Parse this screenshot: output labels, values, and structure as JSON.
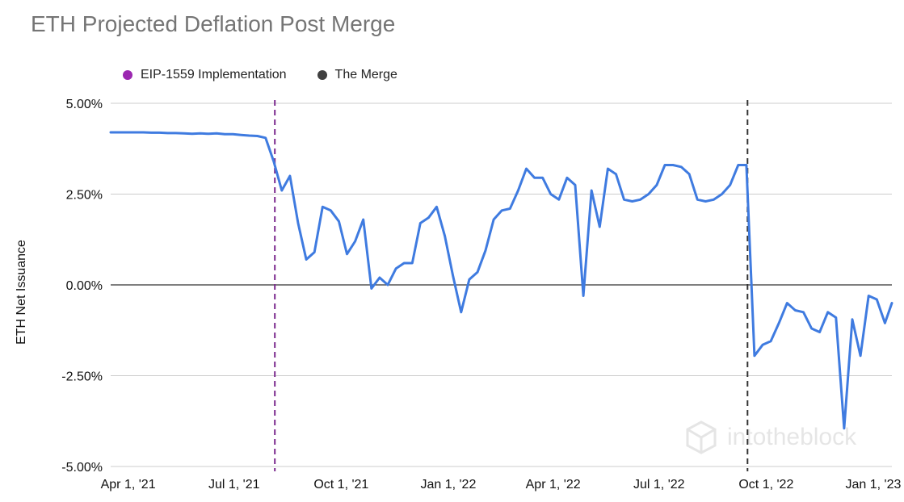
{
  "chart_data": {
    "type": "line",
    "title": "ETH Projected Deflation Post Merge",
    "ylabel": "ETH Net Issuance",
    "xlabel": "",
    "ylim": [
      -5,
      5
    ],
    "xlim": [
      "2021-03-17",
      "2023-01-17"
    ],
    "yticks": [
      {
        "value": 5,
        "label": "5.00%"
      },
      {
        "value": 2.5,
        "label": "2.50%"
      },
      {
        "value": 0,
        "label": "0.00%"
      },
      {
        "value": -2.5,
        "label": "-2.50%"
      },
      {
        "value": -5,
        "label": "-5.00%"
      }
    ],
    "xticks": [
      {
        "date": "2021-04-01",
        "label": "Apr 1, '21"
      },
      {
        "date": "2021-07-01",
        "label": "Jul 1, '21"
      },
      {
        "date": "2021-10-01",
        "label": "Oct 1, '21"
      },
      {
        "date": "2022-01-01",
        "label": "Jan 1, '22"
      },
      {
        "date": "2022-04-01",
        "label": "Apr 1, '22"
      },
      {
        "date": "2022-07-01",
        "label": "Jul 1, '22"
      },
      {
        "date": "2022-10-01",
        "label": "Oct 1, '22"
      },
      {
        "date": "2023-01-01",
        "label": "Jan 1, '23"
      }
    ],
    "grid": true,
    "legend_position": "top",
    "events": [
      {
        "name": "EIP-1559 Implementation",
        "date": "2021-08-05",
        "color": "#7b2a8e",
        "dot_color": "#9b27b0"
      },
      {
        "name": "The Merge",
        "date": "2022-09-15",
        "color": "#333333",
        "dot_color": "#404040"
      }
    ],
    "series": [
      {
        "color": "#3f7be0",
        "x": [
          "2021-03-17",
          "2021-03-24",
          "2021-03-31",
          "2021-04-07",
          "2021-04-14",
          "2021-04-21",
          "2021-04-28",
          "2021-05-05",
          "2021-05-12",
          "2021-05-19",
          "2021-05-26",
          "2021-06-02",
          "2021-06-09",
          "2021-06-16",
          "2021-06-23",
          "2021-06-30",
          "2021-07-07",
          "2021-07-14",
          "2021-07-21",
          "2021-07-28",
          "2021-08-04",
          "2021-08-11",
          "2021-08-18",
          "2021-08-25",
          "2021-09-01",
          "2021-09-08",
          "2021-09-15",
          "2021-09-22",
          "2021-09-29",
          "2021-10-06",
          "2021-10-13",
          "2021-10-20",
          "2021-10-27",
          "2021-11-03",
          "2021-11-10",
          "2021-11-17",
          "2021-11-24",
          "2021-12-01",
          "2021-12-08",
          "2021-12-15",
          "2021-12-22",
          "2021-12-29",
          "2022-01-05",
          "2022-01-12",
          "2022-01-19",
          "2022-01-26",
          "2022-02-02",
          "2022-02-09",
          "2022-02-16",
          "2022-02-23",
          "2022-03-02",
          "2022-03-09",
          "2022-03-16",
          "2022-03-23",
          "2022-03-30",
          "2022-04-06",
          "2022-04-13",
          "2022-04-20",
          "2022-04-27",
          "2022-05-04",
          "2022-05-11",
          "2022-05-18",
          "2022-05-25",
          "2022-06-01",
          "2022-06-08",
          "2022-06-15",
          "2022-06-22",
          "2022-06-29",
          "2022-07-06",
          "2022-07-13",
          "2022-07-20",
          "2022-07-27",
          "2022-08-03",
          "2022-08-10",
          "2022-08-17",
          "2022-08-24",
          "2022-08-31",
          "2022-09-07",
          "2022-09-14",
          "2022-09-21",
          "2022-09-28",
          "2022-10-05",
          "2022-10-12",
          "2022-10-19",
          "2022-10-26",
          "2022-11-02",
          "2022-11-09",
          "2022-11-16",
          "2022-11-23",
          "2022-11-30",
          "2022-12-07",
          "2022-12-14",
          "2022-12-21",
          "2022-12-28",
          "2023-01-04",
          "2023-01-11",
          "2023-01-17"
        ],
        "y": [
          4.2,
          4.2,
          4.2,
          4.2,
          4.2,
          4.19,
          4.19,
          4.18,
          4.18,
          4.17,
          4.16,
          4.17,
          4.16,
          4.17,
          4.15,
          4.15,
          4.13,
          4.11,
          4.1,
          4.05,
          3.4,
          2.6,
          3.0,
          1.7,
          0.7,
          0.9,
          2.15,
          2.05,
          1.75,
          0.85,
          1.2,
          1.8,
          -0.1,
          0.2,
          0.0,
          0.45,
          0.6,
          0.6,
          1.7,
          1.85,
          2.15,
          1.35,
          0.25,
          -0.75,
          0.15,
          0.35,
          0.95,
          1.8,
          2.05,
          2.1,
          2.6,
          3.2,
          2.95,
          2.95,
          2.5,
          2.35,
          2.95,
          2.75,
          -0.3,
          2.6,
          1.6,
          3.2,
          3.05,
          2.35,
          2.3,
          2.35,
          2.5,
          2.75,
          3.3,
          3.3,
          3.25,
          3.05,
          2.35,
          2.3,
          2.35,
          2.5,
          2.75,
          3.3,
          3.3,
          -1.95,
          -1.65,
          -1.55,
          -1.05,
          -0.5,
          -0.7,
          -0.75,
          -1.2,
          -1.3,
          -0.75,
          -0.9,
          -3.95,
          -0.95,
          -1.95,
          -0.3,
          -0.4,
          -1.05,
          -0.5
        ]
      }
    ]
  },
  "watermark": "intotheblock",
  "watermark_icon": "intotheblock-cube-logo-icon"
}
